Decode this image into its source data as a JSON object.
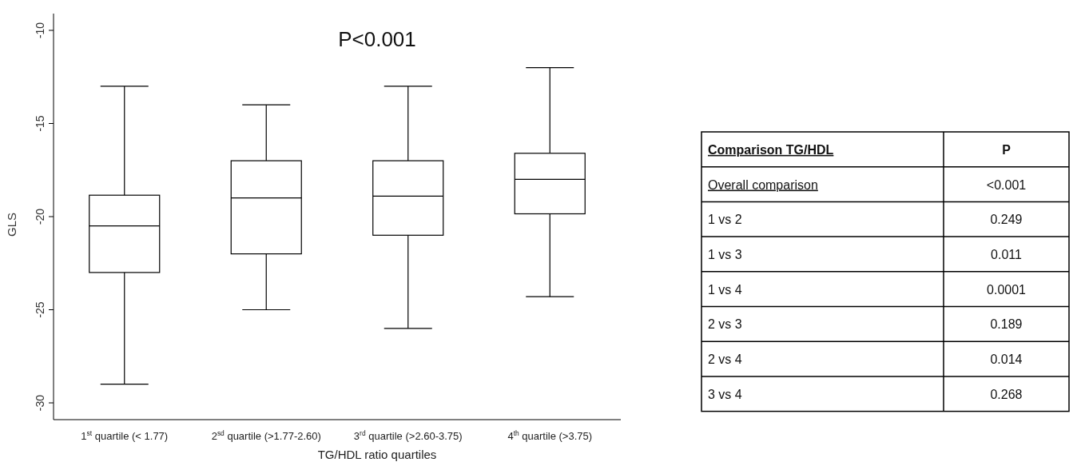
{
  "chart_data": [
    {
      "type": "box",
      "title": "P<0.001",
      "xlabel": "TG/HDL ratio quartiles",
      "ylabel": "GLS",
      "categories": [
        "1$^{st}$ quartile (< 1.77)",
        "2$^{sd}$ quartile (>1.77-2.60)",
        "3$^{rd}$ quartile (>2.60-3.75)",
        "4$^{th}$ quartile (>3.75)"
      ],
      "boxes": [
        {
          "low": -29,
          "q1": -23,
          "median": -20.5,
          "q3": -18.85,
          "high": -13
        },
        {
          "low": -25,
          "q1": -22,
          "median": -19,
          "q3": -17,
          "high": -14
        },
        {
          "low": -26,
          "q1": -21,
          "median": -18.9,
          "q3": -17,
          "high": -13
        },
        {
          "low": -24.3,
          "q1": -19.85,
          "median": -18,
          "q3": -16.6,
          "high": -12
        }
      ],
      "ylim": [
        -30.9,
        -9.1
      ],
      "yticks": [
        -30,
        -25,
        -20,
        -15,
        -10
      ]
    },
    {
      "type": "other",
      "categories": [
        "Comparison TG/HDL",
        "Overall comparison",
        "1 vs 2",
        "1 vs 3",
        "1 vs 4",
        "2 vs 3",
        "2 vs 4",
        "3 vs 4"
      ],
      "value_labels": [
        "P",
        "<0.001",
        "0.249",
        "0.011",
        "0.0001",
        "0.189",
        "0.014",
        "0.268"
      ]
    }
  ]
}
